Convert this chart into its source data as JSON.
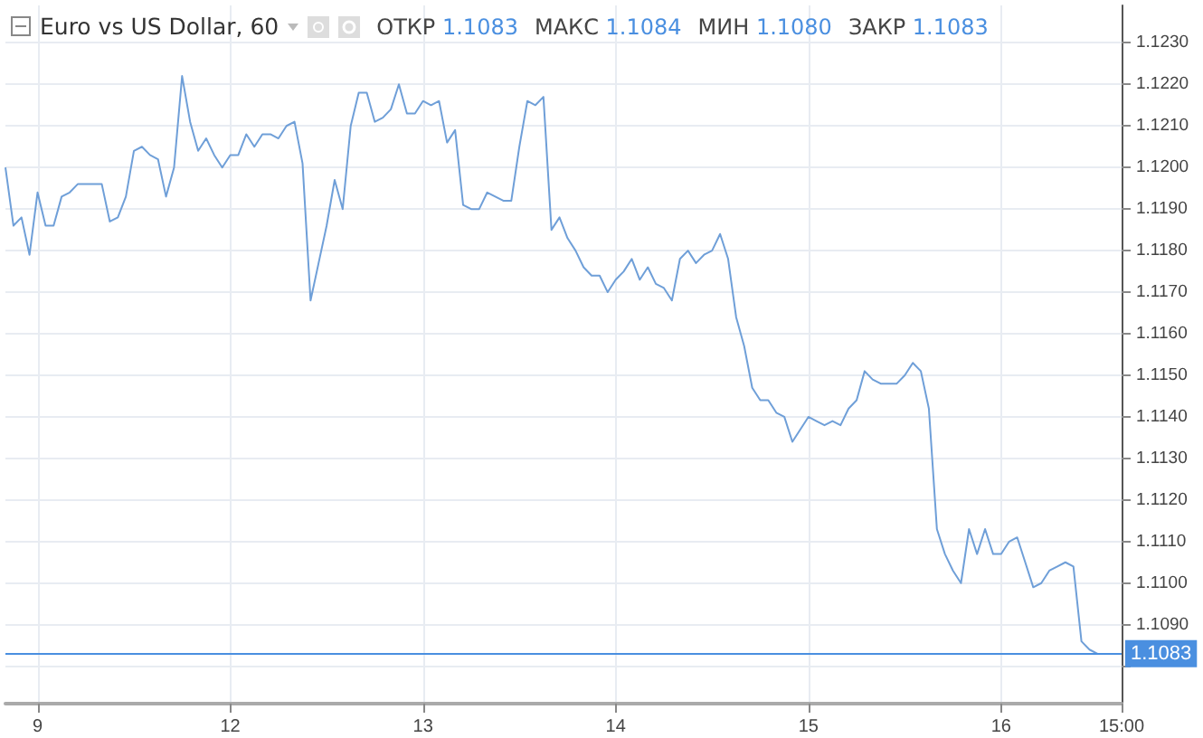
{
  "chart_data": {
    "type": "line",
    "title": "Euro vs US Dollar, 60",
    "annotations": [
      "ОТКР 1.1083",
      "МАКС 1.1084",
      "МИН 1.1080",
      "ЗАКР 1.1083"
    ],
    "categories": [
      null,
      null,
      null,
      null,
      "9",
      null,
      null,
      null,
      null,
      null,
      null,
      null,
      null,
      null,
      null,
      null,
      null,
      null,
      null,
      null,
      null,
      null,
      null,
      null,
      null,
      null,
      null,
      null,
      "12",
      null,
      null,
      null,
      null,
      null,
      null,
      null,
      null,
      null,
      null,
      null,
      null,
      null,
      null,
      null,
      null,
      null,
      null,
      null,
      null,
      null,
      null,
      null,
      "13",
      null,
      null,
      null,
      null,
      null,
      null,
      null,
      null,
      null,
      null,
      null,
      null,
      null,
      null,
      null,
      null,
      null,
      null,
      null,
      null,
      null,
      null,
      null,
      "14",
      null,
      null,
      null,
      null,
      null,
      null,
      null,
      null,
      null,
      null,
      null,
      null,
      null,
      null,
      null,
      null,
      null,
      null,
      null,
      null,
      null,
      null,
      null,
      "15",
      null,
      null,
      null,
      null,
      null,
      null,
      null,
      null,
      null,
      null,
      null,
      null,
      null,
      null,
      null,
      null,
      null,
      null,
      null,
      null,
      null,
      null,
      null,
      "16",
      null,
      null,
      null,
      null,
      null,
      null,
      null,
      null,
      null,
      null,
      null,
      null,
      null,
      null,
      "15:00"
    ],
    "series": [
      {
        "color": "#6f9fd8",
        "values": [
          1.12,
          1.1186,
          1.1188,
          1.1179,
          1.1194,
          1.1186,
          1.1186,
          1.1193,
          1.1194,
          1.1196,
          1.1196,
          1.1196,
          1.1196,
          1.1187,
          1.1188,
          1.1193,
          1.1204,
          1.1205,
          1.1203,
          1.1202,
          1.1193,
          1.12,
          1.1222,
          1.1211,
          1.1204,
          1.1207,
          1.1203,
          1.12,
          1.1203,
          1.1203,
          1.1208,
          1.1205,
          1.1208,
          1.1208,
          1.1207,
          1.121,
          1.1211,
          1.1201,
          1.1168,
          1.1177,
          1.1186,
          1.1197,
          1.119,
          1.121,
          1.1218,
          1.1218,
          1.1211,
          1.1212,
          1.1214,
          1.122,
          1.1213,
          1.1213,
          1.1216,
          1.1215,
          1.1216,
          1.1206,
          1.1209,
          1.1191,
          1.119,
          1.119,
          1.1194,
          1.1193,
          1.1192,
          1.1192,
          1.1205,
          1.1216,
          1.1215,
          1.1217,
          1.1185,
          1.1188,
          1.1183,
          1.118,
          1.1176,
          1.1174,
          1.1174,
          1.117,
          1.1173,
          1.1175,
          1.1178,
          1.1173,
          1.1176,
          1.1172,
          1.1171,
          1.1168,
          1.1178,
          1.118,
          1.1177,
          1.1179,
          1.118,
          1.1184,
          1.1178,
          1.1164,
          1.1157,
          1.1147,
          1.1144,
          1.1144,
          1.1141,
          1.114,
          1.1134,
          1.1137,
          1.114,
          1.1139,
          1.1138,
          1.1139,
          1.1138,
          1.1142,
          1.1144,
          1.1151,
          1.1149,
          1.1148,
          1.1148,
          1.1148,
          1.115,
          1.1153,
          1.1151,
          1.1142,
          1.1113,
          1.1107,
          1.1103,
          1.11,
          1.1113,
          1.1107,
          1.1113,
          1.1107,
          1.1107,
          1.111,
          1.1111,
          1.1105,
          1.1099,
          1.11,
          1.1103,
          1.1104,
          1.1105,
          1.1104,
          1.1086,
          1.1084,
          1.1083,
          null,
          null,
          null
        ]
      }
    ],
    "ylim": [
      1.1071,
      1.1239
    ],
    "yticks": [
      {
        "value": 1.108,
        "label": null
      },
      {
        "value": 1.109,
        "label": "1.1090"
      },
      {
        "value": 1.11,
        "label": "1.1100"
      },
      {
        "value": 1.111,
        "label": "1.1110"
      },
      {
        "value": 1.112,
        "label": "1.1120"
      },
      {
        "value": 1.113,
        "label": "1.1130"
      },
      {
        "value": 1.114,
        "label": "1.1140"
      },
      {
        "value": 1.115,
        "label": "1.1150"
      },
      {
        "value": 1.116,
        "label": "1.1160"
      },
      {
        "value": 1.117,
        "label": "1.1170"
      },
      {
        "value": 1.118,
        "label": "1.1180"
      },
      {
        "value": 1.119,
        "label": "1.1190"
      },
      {
        "value": 1.12,
        "label": "1.1200"
      },
      {
        "value": 1.121,
        "label": "1.1210"
      },
      {
        "value": 1.122,
        "label": "1.1220"
      },
      {
        "value": 1.123,
        "label": "1.1230"
      }
    ],
    "ref_lines": [
      {
        "axis": "y",
        "value": 1.1083,
        "label": "1.1083",
        "color": "#4a8fe0"
      }
    ],
    "grid": true,
    "marker": "none",
    "line_style": "solid"
  }
}
